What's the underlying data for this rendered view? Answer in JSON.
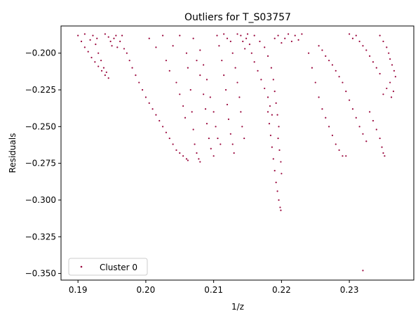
{
  "chart_data": {
    "type": "scatter",
    "title": "Outliers for T_S03757",
    "xlabel": "1/z",
    "ylabel": "Residuals",
    "xlim": [
      0.1875,
      0.2395
    ],
    "ylim": [
      -0.3545,
      -0.1815
    ],
    "xticks": [
      {
        "value": 0.19,
        "label": "0.19"
      },
      {
        "value": 0.2,
        "label": "0.20"
      },
      {
        "value": 0.21,
        "label": "0.21"
      },
      {
        "value": 0.22,
        "label": "0.22"
      },
      {
        "value": 0.23,
        "label": "0.23"
      }
    ],
    "yticks": [
      {
        "value": -0.2,
        "label": "−0.200"
      },
      {
        "value": -0.225,
        "label": "−0.225"
      },
      {
        "value": -0.25,
        "label": "−0.250"
      },
      {
        "value": -0.275,
        "label": "−0.275"
      },
      {
        "value": -0.3,
        "label": "−0.300"
      },
      {
        "value": -0.325,
        "label": "−0.325"
      },
      {
        "value": -0.35,
        "label": "−0.350"
      }
    ],
    "grid": false,
    "legend_position": "lower-left",
    "series": [
      {
        "name": "Cluster 0",
        "color": "#9b0a3f",
        "marker": "dot",
        "points": [
          [
            0.19,
            -0.188
          ],
          [
            0.1905,
            -0.192
          ],
          [
            0.191,
            -0.196
          ],
          [
            0.1915,
            -0.199
          ],
          [
            0.192,
            -0.203
          ],
          [
            0.1925,
            -0.206
          ],
          [
            0.193,
            -0.209
          ],
          [
            0.1935,
            -0.212
          ],
          [
            0.194,
            -0.215
          ],
          [
            0.1945,
            -0.217
          ],
          [
            0.191,
            -0.187
          ],
          [
            0.1918,
            -0.191
          ],
          [
            0.1926,
            -0.194
          ],
          [
            0.193,
            -0.2
          ],
          [
            0.1934,
            -0.205
          ],
          [
            0.1938,
            -0.21
          ],
          [
            0.1942,
            -0.213
          ],
          [
            0.1922,
            -0.188
          ],
          [
            0.1928,
            -0.19
          ],
          [
            0.194,
            -0.187
          ],
          [
            0.1945,
            -0.189
          ],
          [
            0.1948,
            -0.192
          ],
          [
            0.195,
            -0.195
          ],
          [
            0.1953,
            -0.19
          ],
          [
            0.1956,
            -0.188
          ],
          [
            0.1958,
            -0.196
          ],
          [
            0.1962,
            -0.192
          ],
          [
            0.1965,
            -0.188
          ],
          [
            0.1968,
            -0.197
          ],
          [
            0.1972,
            -0.2
          ],
          [
            0.1976,
            -0.205
          ],
          [
            0.198,
            -0.21
          ],
          [
            0.1985,
            -0.215
          ],
          [
            0.199,
            -0.22
          ],
          [
            0.1995,
            -0.225
          ],
          [
            0.2,
            -0.23
          ],
          [
            0.2005,
            -0.234
          ],
          [
            0.201,
            -0.238
          ],
          [
            0.2015,
            -0.242
          ],
          [
            0.202,
            -0.246
          ],
          [
            0.2025,
            -0.25
          ],
          [
            0.203,
            -0.254
          ],
          [
            0.2035,
            -0.258
          ],
          [
            0.204,
            -0.262
          ],
          [
            0.2045,
            -0.266
          ],
          [
            0.205,
            -0.268
          ],
          [
            0.2055,
            -0.27
          ],
          [
            0.206,
            -0.272
          ],
          [
            0.2062,
            -0.273
          ],
          [
            0.2005,
            -0.19
          ],
          [
            0.2015,
            -0.196
          ],
          [
            0.2025,
            -0.188
          ],
          [
            0.203,
            -0.205
          ],
          [
            0.2035,
            -0.212
          ],
          [
            0.204,
            -0.195
          ],
          [
            0.2045,
            -0.22
          ],
          [
            0.205,
            -0.228
          ],
          [
            0.2055,
            -0.236
          ],
          [
            0.2058,
            -0.244
          ],
          [
            0.205,
            -0.188
          ],
          [
            0.206,
            -0.2
          ],
          [
            0.2062,
            -0.21
          ],
          [
            0.2066,
            -0.225
          ],
          [
            0.2068,
            -0.24
          ],
          [
            0.207,
            -0.252
          ],
          [
            0.2072,
            -0.262
          ],
          [
            0.2075,
            -0.268
          ],
          [
            0.2078,
            -0.272
          ],
          [
            0.208,
            -0.274
          ],
          [
            0.207,
            -0.19
          ],
          [
            0.2075,
            -0.205
          ],
          [
            0.208,
            -0.215
          ],
          [
            0.2085,
            -0.228
          ],
          [
            0.2088,
            -0.238
          ],
          [
            0.209,
            -0.248
          ],
          [
            0.2093,
            -0.258
          ],
          [
            0.2096,
            -0.265
          ],
          [
            0.21,
            -0.27
          ],
          [
            0.208,
            -0.198
          ],
          [
            0.2085,
            -0.208
          ],
          [
            0.209,
            -0.218
          ],
          [
            0.2095,
            -0.23
          ],
          [
            0.21,
            -0.24
          ],
          [
            0.2103,
            -0.25
          ],
          [
            0.2106,
            -0.258
          ],
          [
            0.211,
            -0.262
          ],
          [
            0.2105,
            -0.188
          ],
          [
            0.2108,
            -0.195
          ],
          [
            0.2112,
            -0.205
          ],
          [
            0.2115,
            -0.215
          ],
          [
            0.2118,
            -0.225
          ],
          [
            0.212,
            -0.235
          ],
          [
            0.2122,
            -0.245
          ],
          [
            0.2125,
            -0.255
          ],
          [
            0.2128,
            -0.262
          ],
          [
            0.213,
            -0.268
          ],
          [
            0.2115,
            -0.187
          ],
          [
            0.212,
            -0.19
          ],
          [
            0.2125,
            -0.192
          ],
          [
            0.2128,
            -0.2
          ],
          [
            0.2132,
            -0.21
          ],
          [
            0.2135,
            -0.22
          ],
          [
            0.2138,
            -0.23
          ],
          [
            0.214,
            -0.24
          ],
          [
            0.2142,
            -0.25
          ],
          [
            0.2145,
            -0.258
          ],
          [
            0.2135,
            -0.187
          ],
          [
            0.214,
            -0.188
          ],
          [
            0.2143,
            -0.192
          ],
          [
            0.2146,
            -0.197
          ],
          [
            0.2148,
            -0.19
          ],
          [
            0.215,
            -0.187
          ],
          [
            0.2153,
            -0.194
          ],
          [
            0.2156,
            -0.2
          ],
          [
            0.216,
            -0.206
          ],
          [
            0.2165,
            -0.212
          ],
          [
            0.217,
            -0.218
          ],
          [
            0.2175,
            -0.224
          ],
          [
            0.218,
            -0.23
          ],
          [
            0.2183,
            -0.236
          ],
          [
            0.2186,
            -0.242
          ],
          [
            0.216,
            -0.188
          ],
          [
            0.2168,
            -0.192
          ],
          [
            0.2175,
            -0.196
          ],
          [
            0.218,
            -0.202
          ],
          [
            0.2185,
            -0.21
          ],
          [
            0.2188,
            -0.218
          ],
          [
            0.219,
            -0.226
          ],
          [
            0.2192,
            -0.234
          ],
          [
            0.2194,
            -0.242
          ],
          [
            0.2196,
            -0.25
          ],
          [
            0.218,
            -0.24
          ],
          [
            0.2182,
            -0.248
          ],
          [
            0.2184,
            -0.256
          ],
          [
            0.2186,
            -0.264
          ],
          [
            0.2188,
            -0.272
          ],
          [
            0.219,
            -0.28
          ],
          [
            0.2192,
            -0.288
          ],
          [
            0.2194,
            -0.294
          ],
          [
            0.2196,
            -0.3
          ],
          [
            0.2198,
            -0.305
          ],
          [
            0.2199,
            -0.307
          ],
          [
            0.2195,
            -0.258
          ],
          [
            0.2197,
            -0.266
          ],
          [
            0.2199,
            -0.274
          ],
          [
            0.22,
            -0.282
          ],
          [
            0.219,
            -0.19
          ],
          [
            0.2195,
            -0.188
          ],
          [
            0.22,
            -0.193
          ],
          [
            0.2205,
            -0.19
          ],
          [
            0.221,
            -0.187
          ],
          [
            0.2215,
            -0.192
          ],
          [
            0.222,
            -0.188
          ],
          [
            0.2225,
            -0.191
          ],
          [
            0.223,
            -0.187
          ],
          [
            0.224,
            -0.2
          ],
          [
            0.2245,
            -0.21
          ],
          [
            0.225,
            -0.22
          ],
          [
            0.2255,
            -0.23
          ],
          [
            0.226,
            -0.238
          ],
          [
            0.2265,
            -0.244
          ],
          [
            0.227,
            -0.25
          ],
          [
            0.2275,
            -0.256
          ],
          [
            0.228,
            -0.262
          ],
          [
            0.2285,
            -0.266
          ],
          [
            0.229,
            -0.27
          ],
          [
            0.2295,
            -0.27
          ],
          [
            0.2255,
            -0.195
          ],
          [
            0.226,
            -0.198
          ],
          [
            0.2265,
            -0.202
          ],
          [
            0.227,
            -0.205
          ],
          [
            0.2275,
            -0.208
          ],
          [
            0.228,
            -0.212
          ],
          [
            0.2285,
            -0.216
          ],
          [
            0.229,
            -0.22
          ],
          [
            0.2295,
            -0.226
          ],
          [
            0.23,
            -0.232
          ],
          [
            0.2305,
            -0.238
          ],
          [
            0.231,
            -0.244
          ],
          [
            0.2315,
            -0.25
          ],
          [
            0.232,
            -0.255
          ],
          [
            0.2325,
            -0.26
          ],
          [
            0.23,
            -0.187
          ],
          [
            0.2305,
            -0.19
          ],
          [
            0.231,
            -0.188
          ],
          [
            0.2315,
            -0.192
          ],
          [
            0.232,
            -0.195
          ],
          [
            0.2325,
            -0.198
          ],
          [
            0.233,
            -0.202
          ],
          [
            0.2335,
            -0.206
          ],
          [
            0.234,
            -0.21
          ],
          [
            0.2345,
            -0.214
          ],
          [
            0.233,
            -0.24
          ],
          [
            0.2335,
            -0.246
          ],
          [
            0.234,
            -0.252
          ],
          [
            0.2345,
            -0.258
          ],
          [
            0.2348,
            -0.264
          ],
          [
            0.235,
            -0.268
          ],
          [
            0.2352,
            -0.27
          ],
          [
            0.2345,
            -0.188
          ],
          [
            0.235,
            -0.192
          ],
          [
            0.2355,
            -0.196
          ],
          [
            0.2358,
            -0.2
          ],
          [
            0.236,
            -0.204
          ],
          [
            0.2363,
            -0.208
          ],
          [
            0.2366,
            -0.212
          ],
          [
            0.2368,
            -0.216
          ],
          [
            0.236,
            -0.22
          ],
          [
            0.2355,
            -0.224
          ],
          [
            0.235,
            -0.228
          ],
          [
            0.2362,
            -0.23
          ],
          [
            0.2365,
            -0.226
          ],
          [
            0.232,
            -0.348
          ]
        ]
      }
    ]
  }
}
